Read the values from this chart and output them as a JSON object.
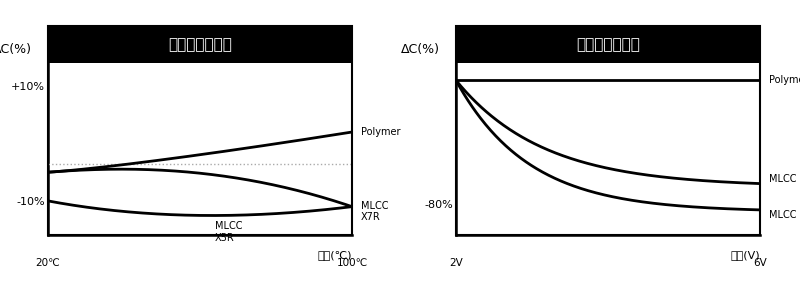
{
  "left_title": "容量の温度特性",
  "right_title": "容量の電圧特性",
  "left_ylabel": "ΔC(%)",
  "right_ylabel": "ΔC(%)",
  "left_xlabel": "温度(℃)",
  "right_xlabel": "電圧(V)",
  "left_x_tick_labels": [
    "20℃",
    "100℃"
  ],
  "right_x_tick_labels": [
    "2V",
    "6V"
  ],
  "left_ytick_vals": [
    10,
    -10
  ],
  "left_ytick_labels": [
    "+10%",
    "-10%"
  ],
  "right_ytick_vals": [
    -80
  ],
  "right_ytick_labels": [
    "-80%"
  ],
  "title_bg": "#000000",
  "title_color": "#ffffff",
  "plot_bg": "#ffffff",
  "border_color": "#000000",
  "line_color": "#000000",
  "dotted_color": "#aaaaaa",
  "dotted_level": -3.5
}
